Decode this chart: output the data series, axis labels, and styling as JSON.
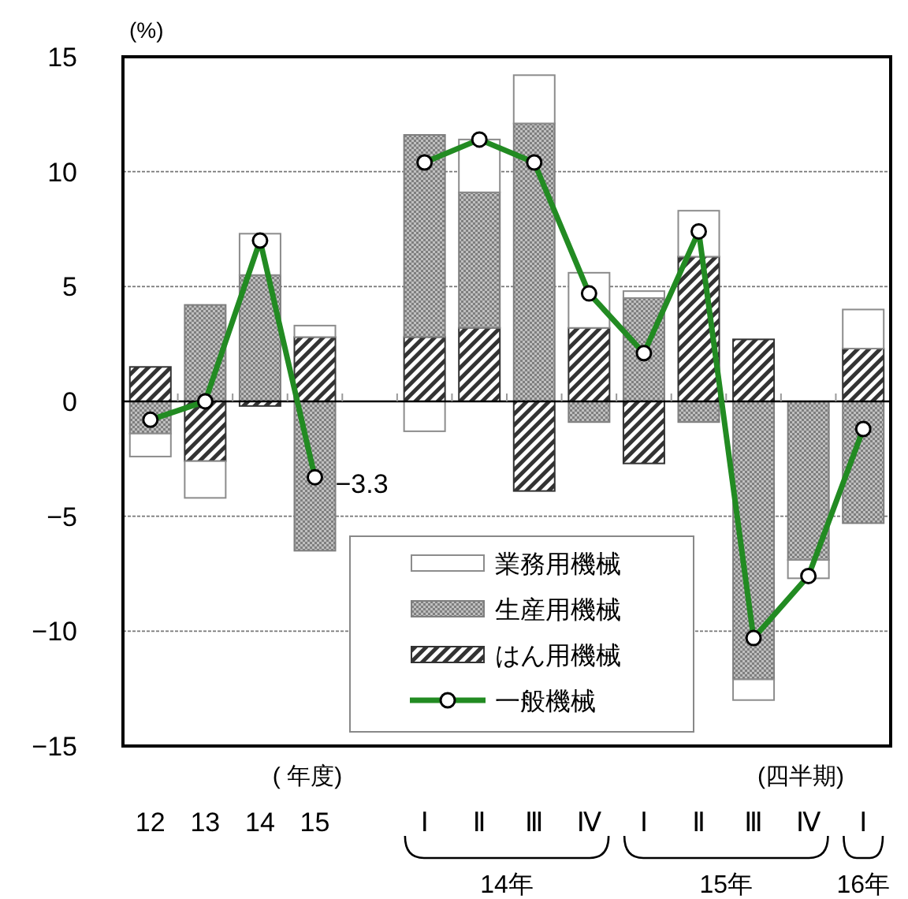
{
  "chart_data": {
    "type": "bar",
    "stacked": true,
    "ylabel": "(%)",
    "categories": [
      "12",
      "13",
      "14",
      "15",
      null,
      "Ⅰ",
      "Ⅱ",
      "Ⅲ",
      "Ⅳ",
      "Ⅰ",
      "Ⅱ",
      "Ⅲ",
      "Ⅳ",
      "Ⅰ"
    ],
    "series": [
      {
        "name": "はん用機械",
        "color": "#333333",
        "values": [
          1.5,
          -2.6,
          -0.2,
          2.8,
          null,
          2.8,
          3.2,
          -3.9,
          3.2,
          -2.7,
          6.3,
          2.7,
          null,
          2.3
        ]
      },
      {
        "name": "生産用機械",
        "color": "#7f7f7f",
        "values": [
          -1.4,
          4.2,
          5.5,
          -6.5,
          null,
          8.8,
          5.9,
          12.1,
          -0.9,
          4.5,
          -0.9,
          -12.1,
          -6.9,
          -5.3
        ]
      },
      {
        "name": "業務用機械",
        "color": "#ffffff",
        "values": [
          -1.0,
          -1.6,
          1.8,
          0.5,
          null,
          -1.3,
          2.3,
          2.1,
          2.4,
          0.3,
          2.0,
          -0.9,
          -0.8,
          1.7
        ]
      },
      {
        "name": "一般機械",
        "type": "line",
        "color": "#228b22",
        "values": [
          -0.8,
          0.0,
          7.0,
          -3.3,
          null,
          10.4,
          11.4,
          10.4,
          4.7,
          2.1,
          7.4,
          -10.3,
          -7.6,
          -1.2
        ],
        "value_labels": [
          null,
          null,
          null,
          "−3.3",
          null,
          null,
          null,
          null,
          null,
          null,
          null,
          null,
          null,
          null
        ]
      }
    ],
    "ylim": [
      -15,
      15
    ],
    "yticks": [
      {
        "value": -15,
        "label": "−15"
      },
      {
        "value": -10,
        "label": "−10"
      },
      {
        "value": -5,
        "label": "−5"
      },
      0,
      5,
      10,
      15
    ],
    "grid": "y",
    "legend": "bottom",
    "marker": "circle",
    "annotations": [
      "( 年度)",
      "(四半期)",
      "14年",
      "15年",
      "16年"
    ]
  }
}
